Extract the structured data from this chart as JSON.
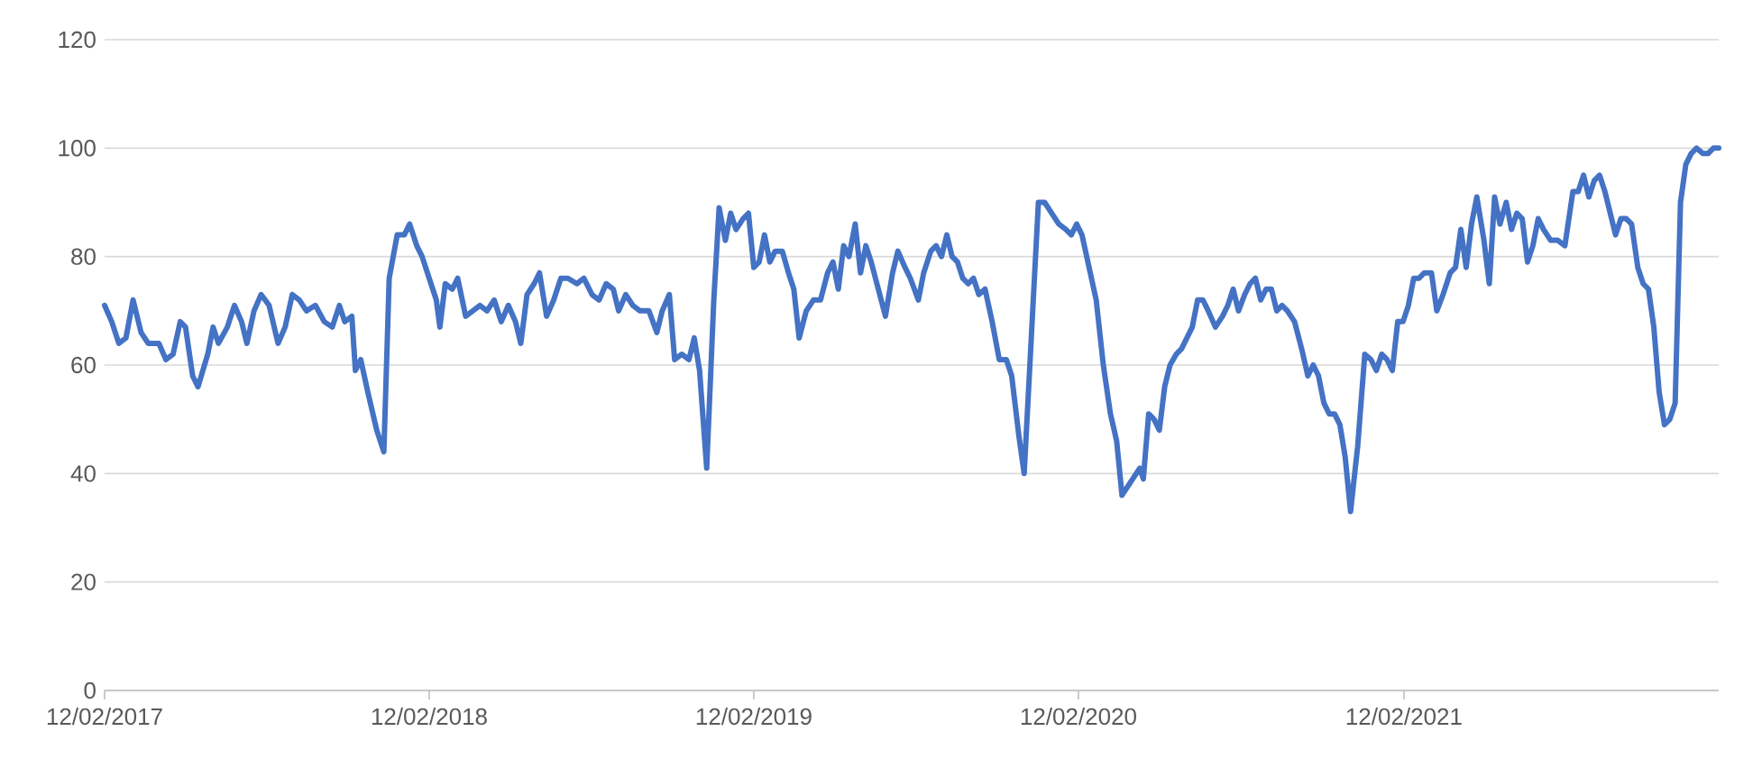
{
  "chart_data": {
    "type": "line",
    "color": "#4472c4",
    "grid": "y",
    "marker": "none",
    "line_style": "solid",
    "xlim": [
      "2017-02-12",
      "2022-02-01"
    ],
    "xticks": [
      {
        "value": "2017-02-12",
        "label": "12/02/2017"
      },
      {
        "value": "2018-02-12",
        "label": "12/02/2018"
      },
      {
        "value": "2019-02-12",
        "label": "12/02/2019"
      },
      {
        "value": "2020-02-12",
        "label": "12/02/2020"
      },
      {
        "value": "2021-02-12",
        "label": "12/02/2021"
      }
    ],
    "ylim": [
      0,
      120
    ],
    "yticks": [
      0,
      20,
      40,
      60,
      80,
      100,
      120
    ],
    "x": [
      "2017-02-12",
      "2017-02-20",
      "2017-02-28",
      "2017-03-08",
      "2017-03-16",
      "2017-03-25",
      "2017-04-02",
      "2017-04-14",
      "2017-04-22",
      "2017-04-30",
      "2017-05-08",
      "2017-05-14",
      "2017-05-22",
      "2017-05-28",
      "2017-06-08",
      "2017-06-14",
      "2017-06-20",
      "2017-06-30",
      "2017-07-08",
      "2017-07-16",
      "2017-07-22",
      "2017-07-30",
      "2017-08-07",
      "2017-08-16",
      "2017-08-26",
      "2017-09-03",
      "2017-09-11",
      "2017-09-19",
      "2017-09-27",
      "2017-10-07",
      "2017-10-17",
      "2017-10-26",
      "2017-11-03",
      "2017-11-09",
      "2017-11-17",
      "2017-11-21",
      "2017-11-27",
      "2017-12-05",
      "2017-12-15",
      "2017-12-23",
      "2017-12-29",
      "2018-01-07",
      "2018-01-15",
      "2018-01-21",
      "2018-01-29",
      "2018-02-04",
      "2018-02-12",
      "2018-02-20",
      "2018-02-24",
      "2018-03-02",
      "2018-03-10",
      "2018-03-16",
      "2018-03-25",
      "2018-04-02",
      "2018-04-10",
      "2018-04-18",
      "2018-04-26",
      "2018-05-04",
      "2018-05-12",
      "2018-05-20",
      "2018-05-26",
      "2018-06-02",
      "2018-06-10",
      "2018-06-16",
      "2018-06-24",
      "2018-07-02",
      "2018-07-10",
      "2018-07-18",
      "2018-07-28",
      "2018-08-05",
      "2018-08-14",
      "2018-08-22",
      "2018-08-30",
      "2018-09-07",
      "2018-09-13",
      "2018-09-21",
      "2018-09-29",
      "2018-10-07",
      "2018-10-17",
      "2018-10-26",
      "2018-11-01",
      "2018-11-09",
      "2018-11-15",
      "2018-11-23",
      "2018-12-01",
      "2018-12-07",
      "2018-12-13",
      "2018-12-21",
      "2018-12-29",
      "2019-01-04",
      "2019-01-11",
      "2019-01-17",
      "2019-01-23",
      "2019-01-31",
      "2019-02-06",
      "2019-02-12",
      "2019-02-18",
      "2019-02-24",
      "2019-03-02",
      "2019-03-08",
      "2019-03-16",
      "2019-03-23",
      "2019-03-29",
      "2019-04-04",
      "2019-04-12",
      "2019-04-20",
      "2019-04-28",
      "2019-05-06",
      "2019-05-12",
      "2019-05-18",
      "2019-05-24",
      "2019-05-30",
      "2019-06-06",
      "2019-06-12",
      "2019-06-18",
      "2019-06-24",
      "2019-07-02",
      "2019-07-10",
      "2019-07-18",
      "2019-07-24",
      "2019-08-01",
      "2019-08-07",
      "2019-08-16",
      "2019-08-22",
      "2019-08-30",
      "2019-09-05",
      "2019-09-11",
      "2019-09-17",
      "2019-09-23",
      "2019-09-29",
      "2019-10-05",
      "2019-10-11",
      "2019-10-17",
      "2019-10-23",
      "2019-10-30",
      "2019-11-07",
      "2019-11-15",
      "2019-11-23",
      "2019-11-29",
      "2019-12-07",
      "2019-12-13",
      "2019-12-21",
      "2019-12-29",
      "2020-01-05",
      "2020-01-13",
      "2020-01-21",
      "2020-01-29",
      "2020-02-04",
      "2020-02-10",
      "2020-02-16",
      "2020-02-24",
      "2020-03-03",
      "2020-03-11",
      "2020-03-19",
      "2020-03-26",
      "2020-04-01",
      "2020-04-09",
      "2020-04-17",
      "2020-04-21",
      "2020-04-25",
      "2020-05-01",
      "2020-05-07",
      "2020-05-13",
      "2020-05-19",
      "2020-05-25",
      "2020-06-01",
      "2020-06-07",
      "2020-06-13",
      "2020-06-19",
      "2020-06-25",
      "2020-07-01",
      "2020-07-07",
      "2020-07-15",
      "2020-07-23",
      "2020-07-29",
      "2020-08-04",
      "2020-08-10",
      "2020-08-17",
      "2020-08-23",
      "2020-08-29",
      "2020-09-04",
      "2020-09-10",
      "2020-09-16",
      "2020-09-22",
      "2020-09-28",
      "2020-10-04",
      "2020-10-12",
      "2020-10-20",
      "2020-10-27",
      "2020-11-02",
      "2020-11-08",
      "2020-11-14",
      "2020-11-20",
      "2020-11-26",
      "2020-12-02",
      "2020-12-08",
      "2020-12-14",
      "2020-12-22",
      "2020-12-30",
      "2021-01-06",
      "2021-01-12",
      "2021-01-18",
      "2021-01-24",
      "2021-01-30",
      "2021-02-05",
      "2021-02-11",
      "2021-02-17",
      "2021-02-23",
      "2021-03-01",
      "2021-03-07",
      "2021-03-15",
      "2021-03-21",
      "2021-03-28",
      "2021-04-05",
      "2021-04-11",
      "2021-04-17",
      "2021-04-23",
      "2021-04-29",
      "2021-05-05",
      "2021-05-13",
      "2021-05-19",
      "2021-05-25",
      "2021-05-31",
      "2021-06-07",
      "2021-06-13",
      "2021-06-19",
      "2021-06-25",
      "2021-07-01",
      "2021-07-07",
      "2021-07-13",
      "2021-07-19",
      "2021-07-27",
      "2021-08-04",
      "2021-08-12",
      "2021-08-21",
      "2021-08-27",
      "2021-09-02",
      "2021-09-08",
      "2021-09-14",
      "2021-09-20",
      "2021-09-26",
      "2021-10-02",
      "2021-10-08",
      "2021-10-14",
      "2021-10-20",
      "2021-10-26",
      "2021-11-02",
      "2021-11-08",
      "2021-11-14",
      "2021-11-20",
      "2021-11-26",
      "2021-12-02",
      "2021-12-08",
      "2021-12-14",
      "2021-12-20",
      "2021-12-26",
      "2022-01-01",
      "2022-01-07",
      "2022-01-14",
      "2022-01-20",
      "2022-01-26",
      "2022-02-01"
    ],
    "values": [
      71,
      68,
      64,
      65,
      72,
      66,
      64,
      64,
      61,
      62,
      68,
      67,
      58,
      56,
      62,
      67,
      64,
      67,
      71,
      68,
      64,
      70,
      73,
      71,
      64,
      67,
      73,
      72,
      70,
      71,
      68,
      67,
      71,
      68,
      69,
      59,
      61,
      55,
      48,
      44,
      76,
      84,
      84,
      86,
      82,
      80,
      76,
      72,
      67,
      75,
      74,
      76,
      69,
      70,
      71,
      70,
      72,
      68,
      71,
      68,
      64,
      73,
      75,
      77,
      69,
      72,
      76,
      76,
      75,
      76,
      73,
      72,
      75,
      74,
      70,
      73,
      71,
      70,
      70,
      66,
      70,
      73,
      61,
      62,
      61,
      65,
      59,
      41,
      72,
      89,
      83,
      88,
      85,
      87,
      88,
      78,
      79,
      84,
      79,
      81,
      81,
      77,
      74,
      65,
      70,
      72,
      72,
      77,
      79,
      74,
      82,
      80,
      86,
      77,
      82,
      79,
      74,
      69,
      77,
      81,
      78,
      76,
      72,
      77,
      81,
      82,
      80,
      84,
      80,
      79,
      76,
      75,
      76,
      73,
      74,
      68,
      61,
      61,
      58,
      47,
      40,
      65,
      90,
      90,
      88,
      86,
      85,
      84,
      86,
      84,
      78,
      72,
      60,
      51,
      46,
      36,
      38,
      40,
      41,
      39,
      51,
      50,
      48,
      56,
      60,
      62,
      63,
      65,
      67,
      72,
      72,
      70,
      67,
      69,
      71,
      74,
      70,
      73,
      75,
      76,
      72,
      74,
      74,
      70,
      71,
      70,
      68,
      63,
      58,
      60,
      58,
      53,
      51,
      51,
      49,
      43,
      33,
      45,
      62,
      61,
      59,
      62,
      61,
      59,
      68,
      68,
      71,
      76,
      76,
      77,
      77,
      70,
      73,
      77,
      78,
      85,
      78,
      86,
      91,
      83,
      75,
      91,
      86,
      90,
      85,
      88,
      87,
      79,
      82,
      87,
      85,
      83,
      83,
      82,
      92,
      92,
      95,
      91,
      94,
      95,
      92,
      88,
      84,
      87,
      87,
      86,
      78,
      75,
      74,
      67,
      55,
      49,
      50,
      53,
      90,
      97,
      99,
      100,
      99,
      99,
      100,
      100
    ]
  }
}
